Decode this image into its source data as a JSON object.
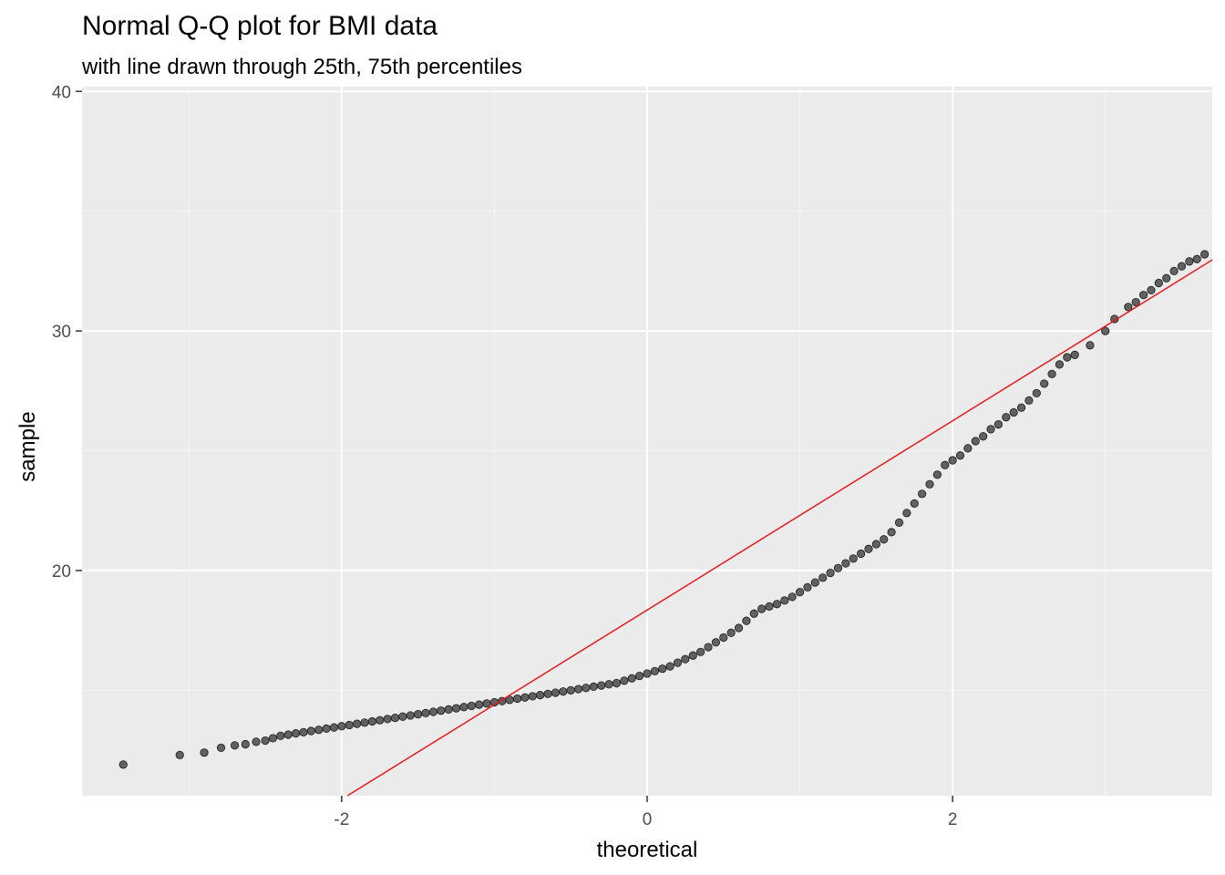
{
  "chart_data": {
    "type": "scatter",
    "title": "Normal Q-Q plot for BMI data",
    "subtitle": "with line drawn through 25th, 75th percentiles",
    "xlabel": "theoretical",
    "ylabel": "sample",
    "xlim": [
      -3.7,
      3.7
    ],
    "ylim": [
      10.6,
      40.2
    ],
    "x_ticks": [
      -2,
      0,
      2
    ],
    "x_tick_labels": [
      "-2",
      "0",
      "2"
    ],
    "y_ticks": [
      20,
      30,
      40
    ],
    "y_tick_labels": [
      "20",
      "30",
      "40"
    ],
    "grid": true,
    "point_color": "#333333",
    "line_color": "#e31a1c",
    "panel_color": "#ebebeb",
    "reference_line": {
      "intercept": 18.35,
      "slope": 3.95
    },
    "series": [
      {
        "points": [
          [
            -3.43,
            11.9
          ],
          [
            -3.06,
            12.3
          ],
          [
            -2.9,
            12.4
          ],
          [
            -2.79,
            12.6
          ],
          [
            -2.7,
            12.7
          ],
          [
            -2.63,
            12.75
          ],
          [
            -2.56,
            12.85
          ],
          [
            -2.5,
            12.9
          ],
          [
            -2.45,
            13.0
          ],
          [
            -2.4,
            13.1
          ],
          [
            -2.35,
            13.15
          ],
          [
            -2.3,
            13.2
          ],
          [
            -2.25,
            13.25
          ],
          [
            -2.2,
            13.3
          ],
          [
            -2.15,
            13.35
          ],
          [
            -2.1,
            13.4
          ],
          [
            -2.05,
            13.45
          ],
          [
            -2.0,
            13.5
          ],
          [
            -1.95,
            13.55
          ],
          [
            -1.9,
            13.6
          ],
          [
            -1.85,
            13.65
          ],
          [
            -1.8,
            13.7
          ],
          [
            -1.75,
            13.75
          ],
          [
            -1.7,
            13.8
          ],
          [
            -1.65,
            13.85
          ],
          [
            -1.6,
            13.9
          ],
          [
            -1.55,
            13.95
          ],
          [
            -1.5,
            14.0
          ],
          [
            -1.45,
            14.05
          ],
          [
            -1.4,
            14.1
          ],
          [
            -1.35,
            14.15
          ],
          [
            -1.3,
            14.2
          ],
          [
            -1.25,
            14.25
          ],
          [
            -1.2,
            14.3
          ],
          [
            -1.15,
            14.35
          ],
          [
            -1.1,
            14.4
          ],
          [
            -1.05,
            14.45
          ],
          [
            -1.0,
            14.5
          ],
          [
            -0.95,
            14.55
          ],
          [
            -0.9,
            14.6
          ],
          [
            -0.85,
            14.65
          ],
          [
            -0.8,
            14.7
          ],
          [
            -0.75,
            14.75
          ],
          [
            -0.7,
            14.8
          ],
          [
            -0.65,
            14.85
          ],
          [
            -0.6,
            14.9
          ],
          [
            -0.55,
            14.95
          ],
          [
            -0.5,
            15.0
          ],
          [
            -0.45,
            15.05
          ],
          [
            -0.4,
            15.1
          ],
          [
            -0.35,
            15.15
          ],
          [
            -0.3,
            15.2
          ],
          [
            -0.25,
            15.25
          ],
          [
            -0.2,
            15.3
          ],
          [
            -0.15,
            15.4
          ],
          [
            -0.1,
            15.5
          ],
          [
            -0.05,
            15.6
          ],
          [
            0.0,
            15.7
          ],
          [
            0.05,
            15.8
          ],
          [
            0.1,
            15.9
          ],
          [
            0.15,
            16.0
          ],
          [
            0.2,
            16.15
          ],
          [
            0.25,
            16.3
          ],
          [
            0.3,
            16.45
          ],
          [
            0.35,
            16.6
          ],
          [
            0.4,
            16.8
          ],
          [
            0.45,
            17.0
          ],
          [
            0.5,
            17.2
          ],
          [
            0.55,
            17.4
          ],
          [
            0.6,
            17.6
          ],
          [
            0.65,
            17.9
          ],
          [
            0.7,
            18.2
          ],
          [
            0.75,
            18.4
          ],
          [
            0.8,
            18.5
          ],
          [
            0.85,
            18.6
          ],
          [
            0.9,
            18.75
          ],
          [
            0.95,
            18.9
          ],
          [
            1.0,
            19.1
          ],
          [
            1.05,
            19.3
          ],
          [
            1.1,
            19.5
          ],
          [
            1.15,
            19.7
          ],
          [
            1.2,
            19.9
          ],
          [
            1.25,
            20.1
          ],
          [
            1.3,
            20.3
          ],
          [
            1.35,
            20.5
          ],
          [
            1.4,
            20.7
          ],
          [
            1.45,
            20.9
          ],
          [
            1.5,
            21.1
          ],
          [
            1.55,
            21.3
          ],
          [
            1.6,
            21.6
          ],
          [
            1.65,
            22.0
          ],
          [
            1.7,
            22.4
          ],
          [
            1.75,
            22.8
          ],
          [
            1.8,
            23.2
          ],
          [
            1.85,
            23.6
          ],
          [
            1.9,
            24.0
          ],
          [
            1.95,
            24.4
          ],
          [
            2.0,
            24.6
          ],
          [
            2.05,
            24.8
          ],
          [
            2.1,
            25.1
          ],
          [
            2.15,
            25.4
          ],
          [
            2.2,
            25.6
          ],
          [
            2.25,
            25.9
          ],
          [
            2.3,
            26.1
          ],
          [
            2.35,
            26.4
          ],
          [
            2.4,
            26.6
          ],
          [
            2.45,
            26.8
          ],
          [
            2.5,
            27.1
          ],
          [
            2.55,
            27.4
          ],
          [
            2.6,
            27.8
          ],
          [
            2.65,
            28.2
          ],
          [
            2.7,
            28.6
          ],
          [
            2.75,
            28.9
          ],
          [
            2.8,
            29.0
          ],
          [
            2.9,
            29.4
          ],
          [
            3.0,
            30.0
          ],
          [
            3.06,
            30.5
          ],
          [
            3.15,
            31.0
          ],
          [
            3.2,
            31.2
          ],
          [
            3.25,
            31.5
          ],
          [
            3.3,
            31.7
          ],
          [
            3.35,
            32.0
          ],
          [
            3.4,
            32.2
          ],
          [
            3.45,
            32.5
          ],
          [
            3.5,
            32.7
          ],
          [
            3.55,
            32.9
          ],
          [
            3.6,
            33.0
          ],
          [
            3.65,
            33.2
          ]
        ]
      }
    ]
  }
}
